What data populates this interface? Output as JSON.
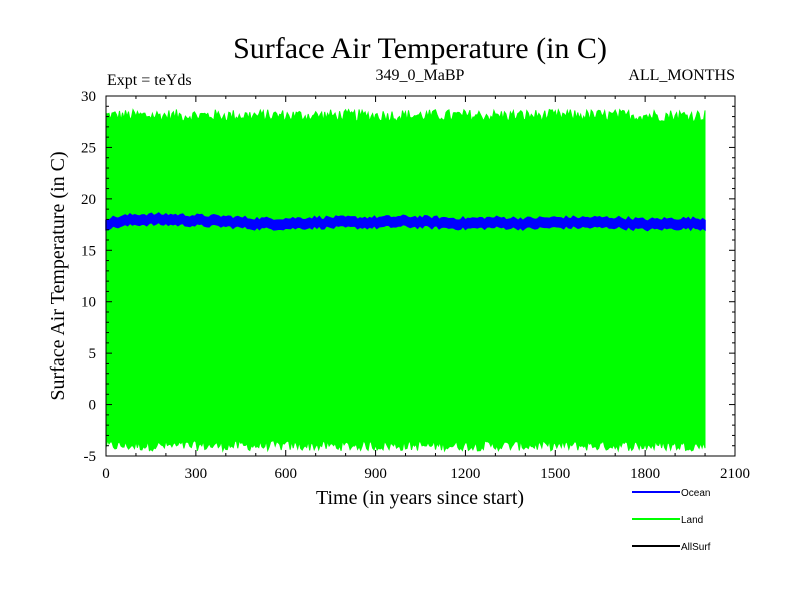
{
  "chart_data": {
    "type": "line",
    "title": "Surface Air Temperature (in C)",
    "subtitle_left": "Expt = teYds",
    "subtitle_center": "349_0_MaBP",
    "subtitle_right": "ALL_MONTHS",
    "xlabel": "Time (in years since start)",
    "ylabel": "Surface Air Temperature (in C)",
    "xlim": [
      0,
      2100
    ],
    "ylim": [
      -5,
      30
    ],
    "x_ticks": [
      0,
      300,
      600,
      900,
      1200,
      1500,
      1800,
      2100
    ],
    "y_ticks": [
      -5,
      0,
      5,
      10,
      15,
      20,
      25,
      30
    ],
    "x_tick_labels": [
      "0",
      "300",
      "600",
      "900",
      "1200",
      "1500",
      "1800",
      "2100"
    ],
    "y_tick_labels": [
      "-5",
      "0",
      "5",
      "10",
      "15",
      "20",
      "25",
      "30"
    ],
    "series": [
      {
        "name": "Land",
        "color": "#00ff00",
        "x_range": [
          0,
          2000
        ],
        "band_low": [
          -4.5,
          -3.5
        ],
        "band_high": [
          27.5,
          28.7
        ],
        "description": "seasonal cycle oscillating between about -4 and 28"
      },
      {
        "name": "Ocean",
        "color": "#0000ff",
        "x_range": [
          0,
          2000
        ],
        "x": [
          0,
          100,
          200,
          300,
          400,
          500,
          600,
          700,
          800,
          900,
          1000,
          1100,
          1200,
          1300,
          1400,
          1500,
          1600,
          1700,
          1800,
          1900,
          2000
        ],
        "values": [
          17.6,
          18.0,
          18.0,
          17.9,
          17.8,
          17.6,
          17.6,
          17.7,
          17.7,
          17.7,
          17.8,
          17.7,
          17.6,
          17.7,
          17.6,
          17.7,
          17.7,
          17.7,
          17.5,
          17.6,
          17.6
        ],
        "band_halfwidth": 0.45
      },
      {
        "name": "AllSurf",
        "color": "#000000",
        "x_range": [
          0,
          2000
        ],
        "values_note": "hidden beneath other series"
      }
    ],
    "legend": {
      "placement": "bottom-right",
      "entries": [
        {
          "label": "Ocean",
          "color": "#0000ff"
        },
        {
          "label": "Land",
          "color": "#00ff00"
        },
        {
          "label": "AllSurf",
          "color": "#000000"
        }
      ]
    }
  }
}
